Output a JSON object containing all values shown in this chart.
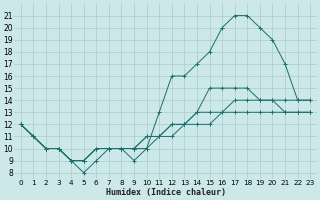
{
  "xlabel": "Humidex (Indice chaleur)",
  "background_color": "#cce8e8",
  "grid_color": "#aacccc",
  "line_color": "#1a6e6e",
  "xlim": [
    -0.5,
    23.5
  ],
  "ylim": [
    7.5,
    22.0
  ],
  "xticks": [
    0,
    1,
    2,
    3,
    4,
    5,
    6,
    7,
    8,
    9,
    10,
    11,
    12,
    13,
    14,
    15,
    16,
    17,
    18,
    19,
    20,
    21,
    22,
    23
  ],
  "yticks": [
    8,
    9,
    10,
    11,
    12,
    13,
    14,
    15,
    16,
    17,
    18,
    19,
    20,
    21
  ],
  "series": [
    [
      12,
      11,
      10,
      10,
      9,
      8,
      9,
      10,
      10,
      9,
      10,
      13,
      16,
      16,
      17,
      18,
      20,
      21,
      21,
      20,
      19,
      17,
      14,
      14
    ],
    [
      12,
      11,
      10,
      10,
      9,
      9,
      10,
      10,
      10,
      10,
      11,
      11,
      12,
      12,
      13,
      13,
      13,
      14,
      14,
      14,
      14,
      14,
      14,
      14
    ],
    [
      12,
      11,
      10,
      10,
      9,
      9,
      10,
      10,
      10,
      10,
      10,
      11,
      11,
      12,
      12,
      12,
      13,
      13,
      13,
      13,
      13,
      13,
      13,
      13
    ],
    [
      12,
      11,
      10,
      10,
      9,
      9,
      10,
      10,
      10,
      10,
      11,
      11,
      12,
      12,
      13,
      15,
      15,
      15,
      15,
      14,
      14,
      13,
      13,
      13
    ]
  ]
}
